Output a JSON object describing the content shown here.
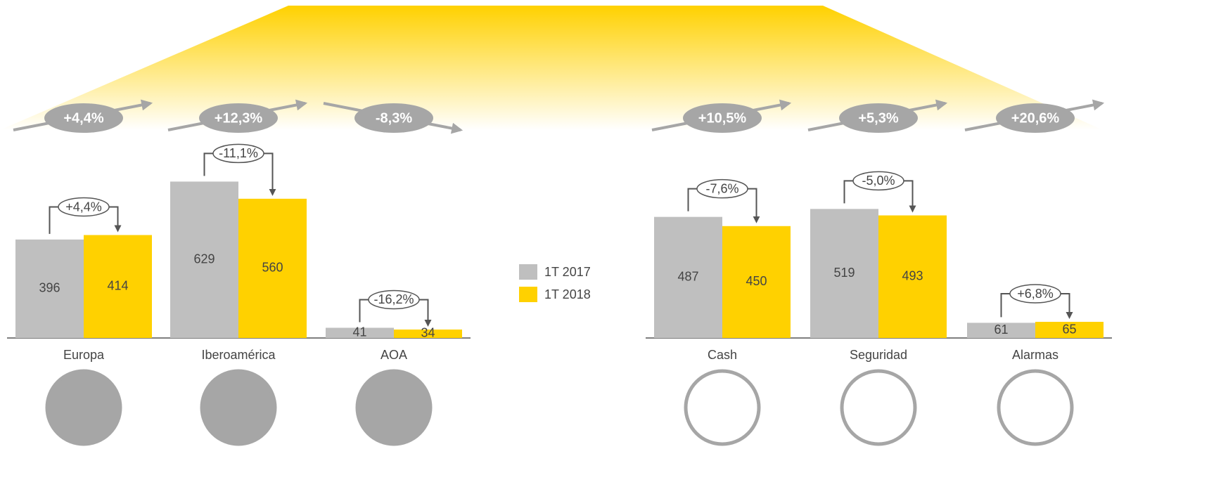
{
  "chart_data": [
    {
      "type": "bar",
      "categories": [
        "Europa",
        "Iberoamérica",
        "AOA"
      ],
      "series": [
        {
          "name": "1T 2017",
          "color": "#bfbfbf",
          "values": [
            396,
            629,
            41
          ]
        },
        {
          "name": "1T 2018",
          "color": "#ffd100",
          "values": [
            414,
            560,
            34
          ]
        }
      ],
      "growth_labels": [
        "+4,4%",
        "+12,3%",
        "-8,3%"
      ],
      "change_labels": [
        "+4,4%",
        "-11,1%",
        "-16,2%"
      ]
    },
    {
      "type": "bar",
      "categories": [
        "Cash",
        "Seguridad",
        "Alarmas"
      ],
      "series": [
        {
          "color": "#bfbfbf",
          "values": [
            487,
            519,
            61
          ]
        },
        {
          "color": "#ffd100",
          "values": [
            450,
            493,
            65
          ]
        }
      ],
      "growth_labels": [
        "+10,5%",
        "+5,3%",
        "+20,6%"
      ],
      "change_labels": [
        "-7,6%",
        "-5,0%",
        "+6,8%"
      ]
    }
  ]
}
